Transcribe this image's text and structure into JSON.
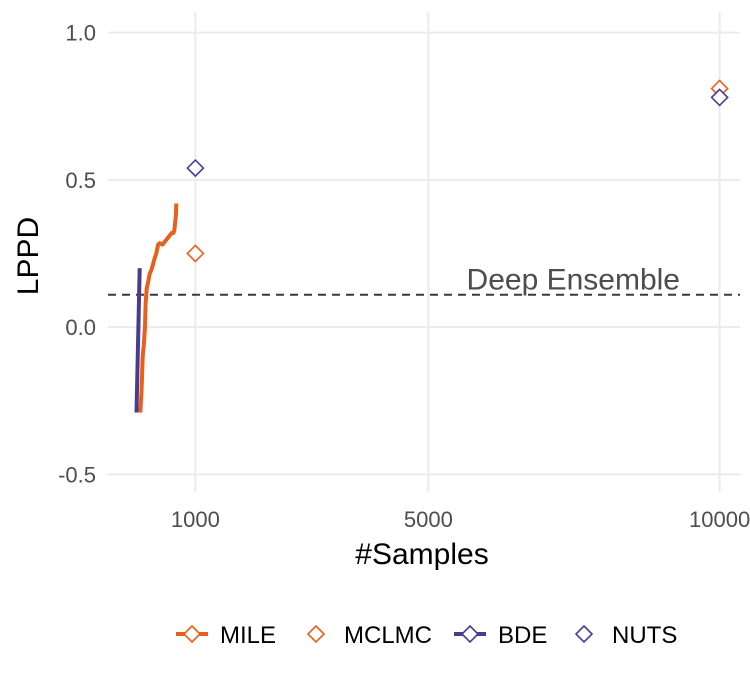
{
  "chart_data": {
    "type": "line",
    "xlabel": "#Samples",
    "ylabel": "LPPD",
    "x_ticks": [
      "1000",
      "5000",
      "10000"
    ],
    "y_ticks": [
      "-0.5",
      "0.0",
      "0.5",
      "1.0"
    ],
    "xlim": [
      -500,
      10350
    ],
    "ylim": [
      -0.56,
      1.07
    ],
    "grid": true,
    "reference_line": {
      "label": "Deep Ensemble",
      "y": 0.11
    },
    "colors": {
      "mile": "#E8601C",
      "mclmc": "#E8601C",
      "bde": "#4B3B8F",
      "nuts": "#4B3B8F"
    },
    "series": [
      {
        "name": "MILE",
        "kind": "line",
        "points": [
          [
            55,
            -0.29
          ],
          [
            75,
            -0.22
          ],
          [
            95,
            -0.1
          ],
          [
            115,
            -0.06
          ],
          [
            135,
            0.0
          ],
          [
            145,
            0.08
          ],
          [
            165,
            0.13
          ],
          [
            195,
            0.16
          ],
          [
            215,
            0.18
          ],
          [
            255,
            0.2
          ],
          [
            295,
            0.23
          ],
          [
            330,
            0.25
          ],
          [
            360,
            0.28
          ],
          [
            385,
            0.285
          ],
          [
            435,
            0.28
          ],
          [
            475,
            0.29
          ],
          [
            515,
            0.3
          ],
          [
            555,
            0.31
          ],
          [
            595,
            0.32
          ],
          [
            625,
            0.32
          ],
          [
            640,
            0.33
          ],
          [
            655,
            0.36
          ],
          [
            665,
            0.38
          ],
          [
            670,
            0.41
          ],
          [
            672,
            0.42
          ]
        ]
      },
      {
        "name": "MCLMC",
        "kind": "point",
        "points": [
          [
            1000,
            0.25
          ],
          [
            10000,
            0.81
          ]
        ]
      },
      {
        "name": "BDE",
        "kind": "line",
        "points": [
          [
            -10,
            -0.29
          ],
          [
            45,
            0.2
          ]
        ]
      },
      {
        "name": "NUTS",
        "kind": "point",
        "points": [
          [
            1000,
            0.54
          ],
          [
            10000,
            0.78
          ]
        ]
      }
    ]
  },
  "legend": {
    "items": [
      {
        "key": "mile",
        "label": "MILE",
        "line": true,
        "color": "#E8601C"
      },
      {
        "key": "mclmc",
        "label": "MCLMC",
        "line": false,
        "color": "#E8601C"
      },
      {
        "key": "bde",
        "label": "BDE",
        "line": true,
        "color": "#4B3B8F"
      },
      {
        "key": "nuts",
        "label": "NUTS",
        "line": false,
        "color": "#4B3B8F"
      }
    ]
  }
}
